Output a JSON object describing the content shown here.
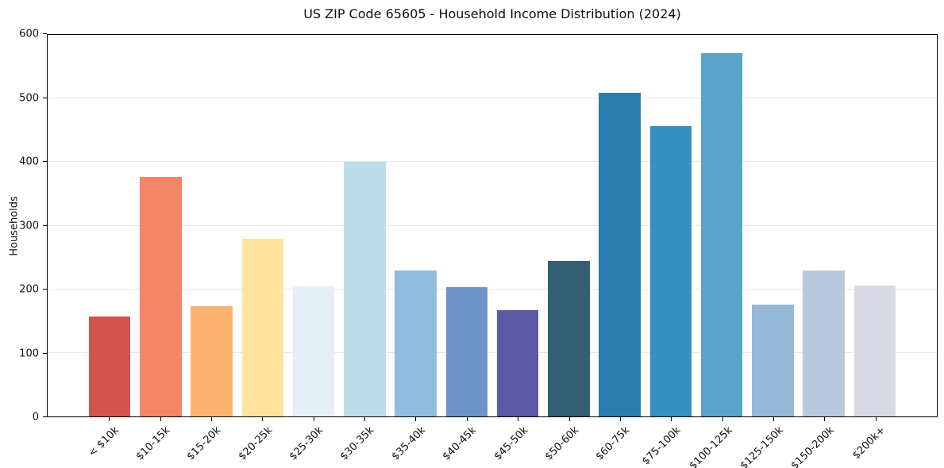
{
  "figure": {
    "title": "US ZIP Code 65605 - Household Income Distribution (2024)"
  },
  "chart_data": {
    "type": "bar",
    "title": "US ZIP Code 65605 - Household Income Distribution (2024)",
    "xlabel": "",
    "ylabel": "Households",
    "ylim": [
      0,
      600
    ],
    "yticks": [
      0,
      100,
      200,
      300,
      400,
      500,
      600
    ],
    "grid": "horizontal",
    "gridline_color": "#e7e7e7",
    "legend": "none",
    "categories": [
      "< $10k",
      "$10-15k",
      "$15-20k",
      "$20-25k",
      "$25-30k",
      "$30-35k",
      "$35-40k",
      "$40-45k",
      "$45-50k",
      "$50-60k",
      "$60-75k",
      "$75-100k",
      "$100-125k",
      "$125-150k",
      "$150-200k",
      "$200k+"
    ],
    "values": [
      157,
      377,
      173,
      280,
      204,
      400,
      230,
      203,
      167,
      244,
      509,
      457,
      571,
      176,
      229,
      206
    ],
    "bar_colors": [
      "#d5534f",
      "#f48566",
      "#fab36f",
      "#fde39c",
      "#e3f0f5",
      "#bddde9",
      "#8fbddc",
      "#6e95c5",
      "#5b5aa7",
      "#355f75",
      "#2e7cab",
      "#3690c1",
      "#5ba3c9",
      "#96b7d6",
      "#bac8de",
      "#d8d8e6"
    ]
  }
}
